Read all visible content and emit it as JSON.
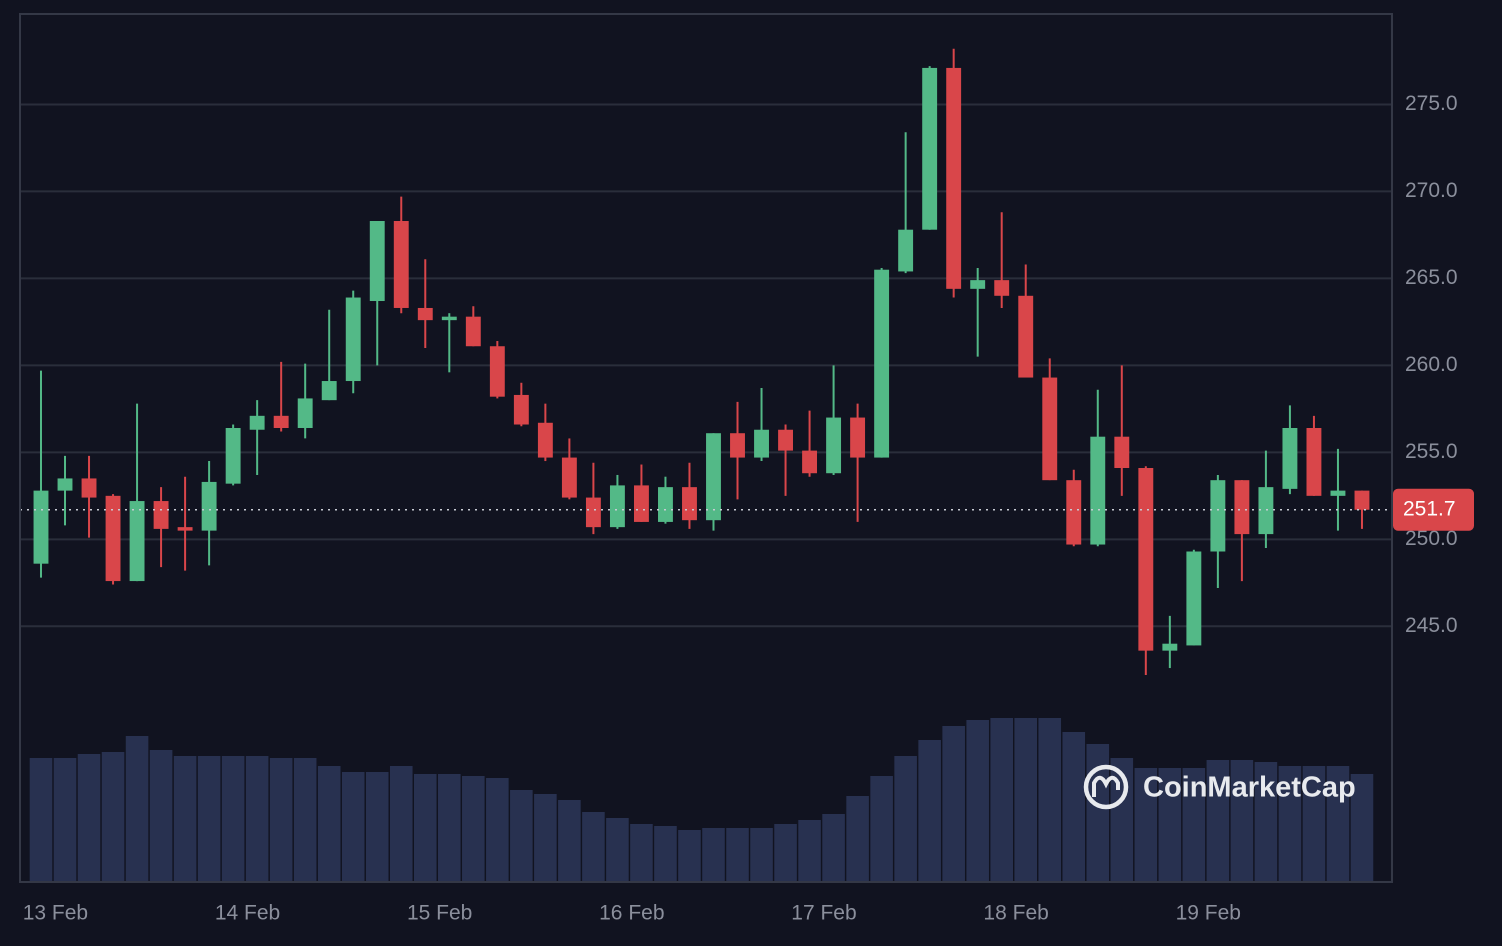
{
  "chart_data": {
    "type": "candlestick",
    "watermark": "CoinMarketCap",
    "up_color": "#53b987",
    "down_color": "#d9464a",
    "volume_color": "#283150",
    "ylim": [
      230.3,
      280.2
    ],
    "yticks": [
      {
        "value": 245,
        "label": "245.0"
      },
      {
        "value": 250,
        "label": "250.0"
      },
      {
        "value": 255,
        "label": "255.0"
      },
      {
        "value": 260,
        "label": "260.0"
      },
      {
        "value": 265,
        "label": "265.0"
      },
      {
        "value": 270,
        "label": "270.0"
      },
      {
        "value": 275,
        "label": "275.0"
      }
    ],
    "grid": true,
    "xlim": [
      -0.874,
      56.25
    ],
    "xticks": [
      {
        "value": 0.6,
        "label": "13 Feb"
      },
      {
        "value": 8.6,
        "label": "14 Feb"
      },
      {
        "value": 16.6,
        "label": "15 Feb"
      },
      {
        "value": 24.6,
        "label": "16 Feb"
      },
      {
        "value": 32.6,
        "label": "17 Feb"
      },
      {
        "value": 40.6,
        "label": "18 Feb"
      },
      {
        "value": 48.6,
        "label": "19 Feb"
      }
    ],
    "last_price": 251.7,
    "open": [
      248.6,
      252.8,
      253.5,
      252.5,
      247.6,
      252.2,
      250.7,
      250.5,
      253.2,
      256.3,
      257.1,
      256.4,
      258.0,
      259.1,
      263.7,
      268.3,
      263.3,
      262.6,
      262.8,
      261.1,
      258.3,
      256.7,
      254.7,
      252.4,
      250.7,
      253.1,
      251.0,
      253.0,
      251.1,
      256.1,
      254.7,
      256.3,
      255.1,
      253.8,
      257.0,
      254.7,
      265.4,
      267.8,
      277.1,
      264.4,
      264.9,
      264.0,
      259.3,
      253.4,
      249.7,
      255.9,
      254.1,
      243.6,
      243.9,
      249.3,
      253.4,
      250.3,
      252.9,
      256.4,
      252.5,
      252.8
    ],
    "high": [
      259.7,
      254.8,
      254.8,
      252.6,
      257.8,
      253.0,
      253.6,
      254.5,
      256.6,
      258.0,
      260.2,
      260.1,
      263.2,
      264.3,
      268.3,
      269.7,
      266.1,
      263.0,
      263.4,
      261.4,
      259.0,
      257.8,
      255.8,
      254.4,
      253.7,
      254.3,
      253.6,
      254.4,
      256.1,
      257.9,
      258.7,
      256.6,
      257.4,
      260.0,
      257.8,
      265.6,
      273.4,
      277.2,
      278.2,
      265.6,
      268.8,
      265.8,
      260.4,
      254.0,
      258.6,
      260.0,
      254.2,
      245.6,
      249.4,
      253.7,
      253.4,
      255.1,
      257.7,
      257.1,
      255.2,
      252.8
    ],
    "low": [
      247.8,
      250.8,
      250.1,
      247.4,
      247.6,
      248.4,
      248.2,
      248.5,
      253.1,
      253.7,
      256.2,
      255.8,
      258.0,
      258.4,
      260.0,
      263.0,
      261.0,
      259.6,
      261.1,
      258.1,
      256.5,
      254.5,
      252.3,
      250.3,
      250.6,
      251.0,
      250.9,
      250.6,
      250.5,
      252.3,
      254.5,
      252.5,
      253.6,
      253.7,
      251.0,
      254.7,
      265.3,
      267.8,
      263.9,
      260.5,
      263.3,
      259.3,
      253.4,
      249.6,
      249.6,
      252.5,
      242.2,
      242.6,
      243.9,
      247.2,
      247.6,
      249.5,
      252.6,
      252.5,
      250.5,
      250.6
    ],
    "close": [
      252.8,
      253.5,
      252.4,
      247.6,
      252.2,
      250.6,
      250.5,
      253.3,
      256.4,
      257.1,
      256.4,
      258.1,
      259.1,
      263.9,
      268.3,
      263.3,
      262.6,
      262.8,
      261.1,
      258.2,
      256.6,
      254.7,
      252.4,
      250.7,
      253.1,
      251.0,
      253.0,
      251.1,
      256.1,
      254.7,
      256.3,
      255.1,
      253.8,
      257.0,
      254.7,
      265.5,
      267.8,
      277.1,
      264.4,
      264.9,
      264.0,
      259.3,
      253.4,
      249.7,
      255.9,
      254.1,
      243.6,
      244.0,
      249.3,
      253.4,
      250.3,
      253.0,
      256.4,
      252.5,
      252.8,
      251.7
    ],
    "volume": [
      124,
      124,
      128,
      130,
      146,
      132,
      126,
      126,
      126,
      126,
      124,
      124,
      116,
      110,
      110,
      116,
      108,
      108,
      106,
      104,
      92,
      88,
      82,
      70,
      64,
      58,
      56,
      52,
      54,
      54,
      54,
      58,
      62,
      68,
      86,
      106,
      126,
      142,
      156,
      162,
      164,
      164,
      164,
      150,
      138,
      124,
      114,
      114,
      114,
      122,
      122,
      120,
      116,
      116,
      116,
      108
    ]
  }
}
